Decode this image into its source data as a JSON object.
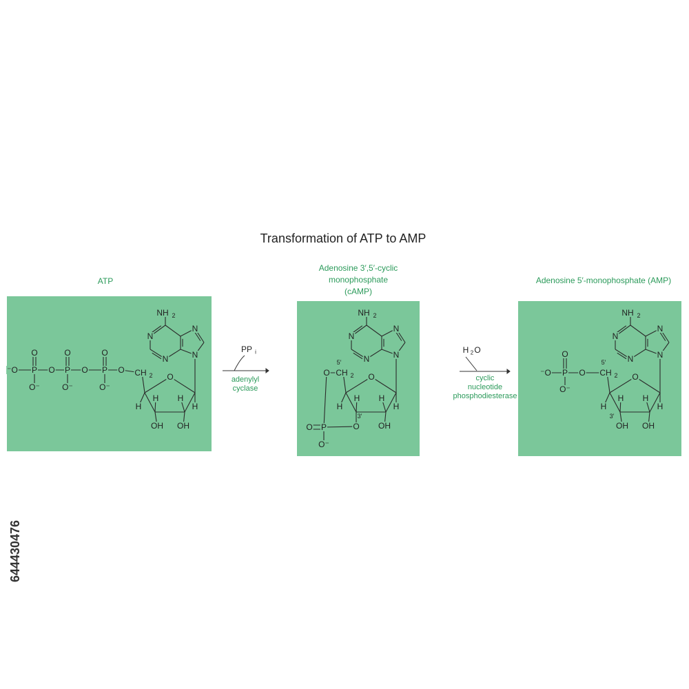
{
  "title": "Transformation of ATP to AMP",
  "side_text": "644430476",
  "molecules": [
    {
      "label": [
        "ATP"
      ],
      "atoms": [
        "NH",
        "2",
        "N",
        "N",
        "N",
        "N",
        "O",
        "CH",
        "2",
        "H",
        "H",
        "H",
        "H",
        "OH",
        "OH",
        "⁻O",
        "P",
        "O",
        "P",
        "O",
        "P",
        "O",
        "O",
        "O",
        "O",
        "O⁻",
        "O⁻",
        "O⁻"
      ]
    },
    {
      "label": [
        "Adenosine 3′,5′-cyclic",
        "monophosphate",
        "(cAMP)"
      ],
      "atoms": [
        "NH",
        "2",
        "N",
        "N",
        "N",
        "N",
        "O",
        "CH",
        "2",
        "H",
        "H",
        "H",
        "H",
        "OH",
        "O",
        "5′",
        "3′",
        "O",
        "O",
        "P",
        "O⁻"
      ]
    },
    {
      "label": [
        "Adenosine 5′-monophosphate (AMP)"
      ],
      "atoms": [
        "NH",
        "2",
        "N",
        "N",
        "N",
        "N",
        "O",
        "CH",
        "2",
        "H",
        "H",
        "H",
        "H",
        "OH",
        "OH",
        "⁻O",
        "P",
        "O",
        "O",
        "O⁻",
        "5′",
        "3′"
      ]
    }
  ],
  "reactions": [
    {
      "species": [
        "PP",
        "i"
      ],
      "enzyme": [
        "adenylyl",
        "cyclase"
      ]
    },
    {
      "species": [
        "H",
        "2",
        "O"
      ],
      "enzyme": [
        "cyclic",
        "nucleotide",
        "phosphodiesterase"
      ]
    }
  ]
}
